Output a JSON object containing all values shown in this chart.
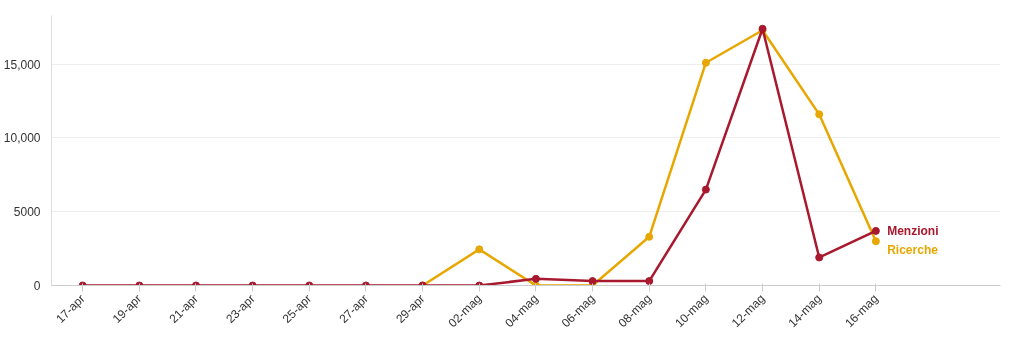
{
  "chart_data": {
    "type": "line",
    "categories": [
      "17-apr",
      "19-apr",
      "21-apr",
      "23-apr",
      "25-apr",
      "27-apr",
      "29-apr",
      "02-mag",
      "04-mag",
      "06-mag",
      "08-mag",
      "10-mag",
      "12-mag",
      "14-mag",
      "16-mag"
    ],
    "series": [
      {
        "name": "Menzioni",
        "color": "#a8182e",
        "values": [
          0,
          0,
          0,
          0,
          0,
          0,
          0,
          0,
          450,
          300,
          300,
          6500,
          17400,
          1900,
          3700
        ]
      },
      {
        "name": "Ricerche",
        "color": "#e8a700",
        "values": [
          null,
          null,
          null,
          null,
          null,
          null,
          0,
          2450,
          0,
          0,
          3300,
          15100,
          17300,
          11600,
          3000
        ]
      }
    ],
    "ylim": [
      0,
      18300
    ],
    "yticks": [
      0,
      5000,
      {
        "value": 10000,
        "label": "10,000"
      },
      {
        "value": 15000,
        "label": "15,000"
      }
    ],
    "grid": "y",
    "marker": "circle",
    "line_style": "solid"
  }
}
